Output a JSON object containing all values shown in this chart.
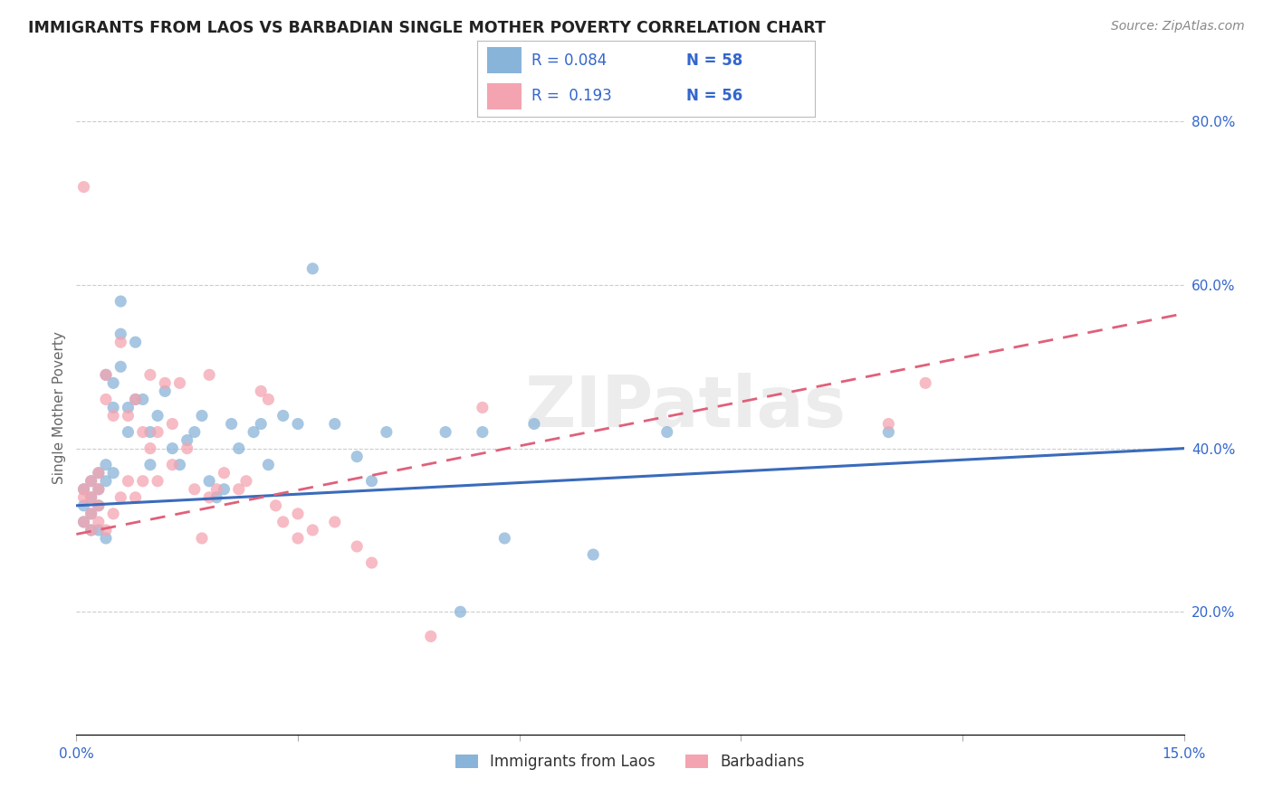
{
  "title": "IMMIGRANTS FROM LAOS VS BARBADIAN SINGLE MOTHER POVERTY CORRELATION CHART",
  "source": "Source: ZipAtlas.com",
  "ylabel": "Single Mother Poverty",
  "xlim": [
    0.0,
    0.15
  ],
  "ylim": [
    0.05,
    0.85
  ],
  "xticks": [
    0.0,
    0.03,
    0.06,
    0.09,
    0.12,
    0.15
  ],
  "xtick_labels": [
    "0.0%",
    "",
    "",
    "",
    "",
    "15.0%"
  ],
  "ytick_vals_right": [
    0.2,
    0.4,
    0.6,
    0.8
  ],
  "ytick_labels_right": [
    "20.0%",
    "40.0%",
    "60.0%",
    "80.0%"
  ],
  "color_blue": "#89B4D9",
  "color_pink": "#F4A4B0",
  "color_blue_line": "#3A6BBB",
  "color_pink_line": "#E0607A",
  "color_text_blue": "#3366CC",
  "color_text_dark": "#333333",
  "watermark": "ZIPatlas",
  "blue_line_x0": 0.0,
  "blue_line_y0": 0.33,
  "blue_line_x1": 0.15,
  "blue_line_y1": 0.4,
  "pink_line_x0": 0.0,
  "pink_line_y0": 0.295,
  "pink_line_x1": 0.15,
  "pink_line_y1": 0.565,
  "laos_x": [
    0.001,
    0.001,
    0.001,
    0.002,
    0.002,
    0.002,
    0.002,
    0.003,
    0.003,
    0.003,
    0.003,
    0.004,
    0.004,
    0.004,
    0.004,
    0.005,
    0.005,
    0.005,
    0.006,
    0.006,
    0.006,
    0.007,
    0.007,
    0.008,
    0.008,
    0.009,
    0.01,
    0.01,
    0.011,
    0.012,
    0.013,
    0.014,
    0.015,
    0.016,
    0.017,
    0.018,
    0.019,
    0.02,
    0.021,
    0.022,
    0.024,
    0.025,
    0.026,
    0.028,
    0.03,
    0.032,
    0.035,
    0.038,
    0.04,
    0.042,
    0.05,
    0.052,
    0.055,
    0.058,
    0.062,
    0.07,
    0.08,
    0.11
  ],
  "laos_y": [
    0.33,
    0.35,
    0.31,
    0.34,
    0.3,
    0.36,
    0.32,
    0.3,
    0.37,
    0.33,
    0.35,
    0.38,
    0.29,
    0.36,
    0.49,
    0.48,
    0.37,
    0.45,
    0.54,
    0.5,
    0.58,
    0.42,
    0.45,
    0.46,
    0.53,
    0.46,
    0.38,
    0.42,
    0.44,
    0.47,
    0.4,
    0.38,
    0.41,
    0.42,
    0.44,
    0.36,
    0.34,
    0.35,
    0.43,
    0.4,
    0.42,
    0.43,
    0.38,
    0.44,
    0.43,
    0.62,
    0.43,
    0.39,
    0.36,
    0.42,
    0.42,
    0.2,
    0.42,
    0.29,
    0.43,
    0.27,
    0.42,
    0.42
  ],
  "barbadian_x": [
    0.001,
    0.001,
    0.001,
    0.001,
    0.002,
    0.002,
    0.002,
    0.002,
    0.003,
    0.003,
    0.003,
    0.003,
    0.004,
    0.004,
    0.004,
    0.005,
    0.005,
    0.006,
    0.006,
    0.007,
    0.007,
    0.008,
    0.008,
    0.009,
    0.009,
    0.01,
    0.01,
    0.011,
    0.011,
    0.012,
    0.013,
    0.013,
    0.014,
    0.015,
    0.016,
    0.017,
    0.018,
    0.018,
    0.019,
    0.02,
    0.022,
    0.023,
    0.025,
    0.026,
    0.027,
    0.028,
    0.03,
    0.03,
    0.032,
    0.035,
    0.038,
    0.04,
    0.048,
    0.055,
    0.11,
    0.115
  ],
  "barbadian_y": [
    0.31,
    0.34,
    0.35,
    0.72,
    0.3,
    0.32,
    0.34,
    0.36,
    0.33,
    0.31,
    0.37,
    0.35,
    0.3,
    0.49,
    0.46,
    0.44,
    0.32,
    0.34,
    0.53,
    0.44,
    0.36,
    0.34,
    0.46,
    0.42,
    0.36,
    0.4,
    0.49,
    0.42,
    0.36,
    0.48,
    0.43,
    0.38,
    0.48,
    0.4,
    0.35,
    0.29,
    0.34,
    0.49,
    0.35,
    0.37,
    0.35,
    0.36,
    0.47,
    0.46,
    0.33,
    0.31,
    0.29,
    0.32,
    0.3,
    0.31,
    0.28,
    0.26,
    0.17,
    0.45,
    0.43,
    0.48
  ]
}
